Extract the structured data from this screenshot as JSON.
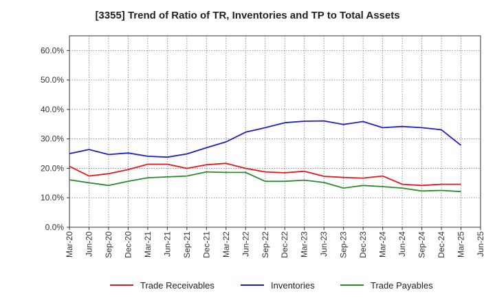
{
  "chart_data": {
    "type": "line",
    "title": "[3355]  Trend of Ratio of TR, Inventories and TP to Total Assets",
    "xlabel": "",
    "ylabel": "",
    "ylim": [
      0,
      65
    ],
    "yticks": [
      "0.0%",
      "10.0%",
      "20.0%",
      "30.0%",
      "40.0%",
      "50.0%",
      "60.0%"
    ],
    "ytick_values": [
      0,
      10,
      20,
      30,
      40,
      50,
      60
    ],
    "x_tick_labels": [
      "Mar-20",
      "Jun-20",
      "Sep-20",
      "Dec-20",
      "Mar-21",
      "Jun-21",
      "Sep-21",
      "Dec-21",
      "Mar-22",
      "Jun-22",
      "Sep-22",
      "Dec-22",
      "Mar-23",
      "Jun-23",
      "Sep-23",
      "Dec-23",
      "Mar-24",
      "Jun-24",
      "Sep-24",
      "Dec-24",
      "Mar-25",
      "Jun-25"
    ],
    "x": [
      "Mar-20",
      "Jun-20",
      "Sep-20",
      "Dec-20",
      "Mar-21",
      "Jun-21",
      "Sep-21",
      "Dec-21",
      "Mar-22",
      "Jun-22",
      "Sep-22",
      "Dec-22",
      "Mar-23",
      "Jun-23",
      "Sep-23",
      "Dec-23",
      "Mar-24",
      "Jun-24",
      "Sep-24",
      "Dec-24",
      "Mar-25"
    ],
    "grid": true,
    "legend_position": "bottom",
    "series": [
      {
        "name": "Trade Receivables",
        "color": "#e8141a",
        "values": [
          20.7,
          17.4,
          18.2,
          19.6,
          21.4,
          21.4,
          20.0,
          21.2,
          21.7,
          20.0,
          18.8,
          18.5,
          19.0,
          17.3,
          16.9,
          16.7,
          17.4,
          14.6,
          14.2,
          14.6,
          14.6
        ]
      },
      {
        "name": "Inventories",
        "color": "#1c1ccf",
        "values": [
          25.0,
          26.4,
          24.7,
          25.2,
          24.1,
          23.8,
          24.9,
          27.0,
          29.0,
          32.3,
          33.8,
          35.5,
          36.0,
          36.1,
          34.9,
          35.9,
          33.8,
          34.2,
          33.8,
          33.1,
          27.8
        ]
      },
      {
        "name": "Trade Payables",
        "color": "#2a8a2a",
        "values": [
          16.1,
          15.1,
          14.2,
          15.6,
          16.8,
          17.1,
          17.4,
          18.8,
          18.6,
          18.6,
          15.6,
          15.6,
          16.0,
          15.2,
          13.3,
          14.2,
          13.8,
          13.3,
          12.3,
          12.5,
          12.1
        ]
      }
    ]
  }
}
